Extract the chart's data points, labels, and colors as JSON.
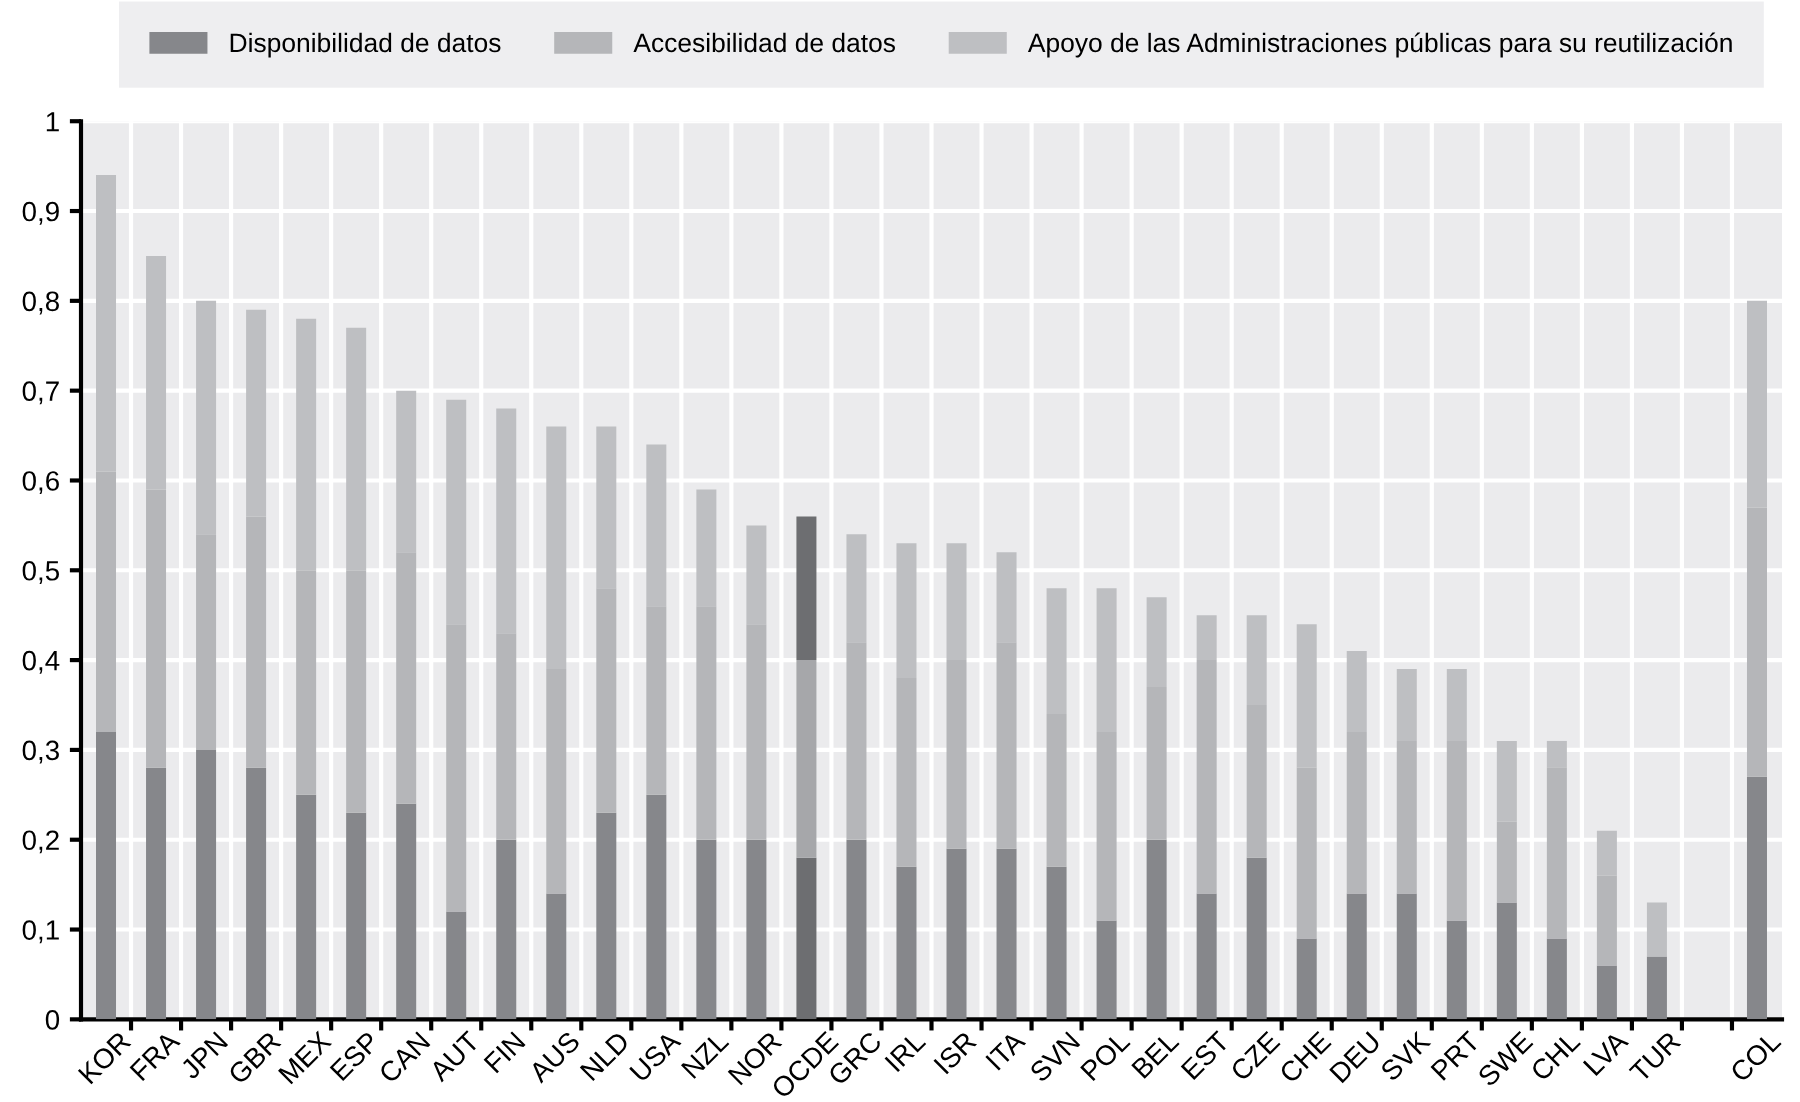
{
  "chart_data": {
    "type": "bar",
    "stacked": true,
    "categories": [
      "KOR",
      "FRA",
      "JPN",
      "GBR",
      "MEX",
      "ESP",
      "CAN",
      "AUT",
      "FIN",
      "AUS",
      "NLD",
      "USA",
      "NZL",
      "NOR",
      "OCDE",
      "GRC",
      "IRL",
      "ISR",
      "ITA",
      "SVN",
      "POL",
      "BEL",
      "EST",
      "CZE",
      "CHE",
      "DEU",
      "SVK",
      "PRT",
      "SWE",
      "CHL",
      "LVA",
      "TUR",
      null,
      "COL"
    ],
    "series": [
      {
        "name": "Disponibilidad de datos",
        "color": "#86878b",
        "colors": [
          "#86878b",
          "#86878b",
          "#86878b",
          "#86878b",
          "#86878b",
          "#86878b",
          "#86878b",
          "#86878b",
          "#86878b",
          "#86878b",
          "#86878b",
          "#86878b",
          "#86878b",
          "#86878b",
          "#6d6e71",
          "#86878b",
          "#86878b",
          "#86878b",
          "#86878b",
          "#86878b",
          "#86878b",
          "#86878b",
          "#86878b",
          "#86878b",
          "#86878b",
          "#86878b",
          "#86878b",
          "#86878b",
          "#86878b",
          "#86878b",
          "#86878b",
          "#86878b",
          "#86878b",
          "#86878b"
        ],
        "values": [
          0.32,
          0.28,
          0.3,
          0.28,
          0.25,
          0.23,
          0.24,
          0.12,
          0.2,
          0.14,
          0.23,
          0.25,
          0.2,
          0.2,
          0.18,
          0.2,
          0.17,
          0.19,
          0.19,
          0.17,
          0.11,
          0.2,
          0.14,
          0.18,
          0.09,
          0.14,
          0.14,
          0.11,
          0.13,
          0.09,
          0.06,
          0.07,
          null,
          0.27
        ]
      },
      {
        "name": "Accesibilidad de datos",
        "color": "#b5b6b9",
        "colors": [
          "#b5b6b9",
          "#b5b6b9",
          "#b5b6b9",
          "#b5b6b9",
          "#b5b6b9",
          "#b5b6b9",
          "#b5b6b9",
          "#b5b6b9",
          "#b5b6b9",
          "#b5b6b9",
          "#b5b6b9",
          "#b5b6b9",
          "#b5b6b9",
          "#b5b6b9",
          "#a6a7aa",
          "#b5b6b9",
          "#b5b6b9",
          "#b5b6b9",
          "#b5b6b9",
          "#b5b6b9",
          "#b5b6b9",
          "#b5b6b9",
          "#b5b6b9",
          "#b5b6b9",
          "#b5b6b9",
          "#b5b6b9",
          "#b5b6b9",
          "#b5b6b9",
          "#b5b6b9",
          "#b5b6b9",
          "#b5b6b9",
          "#b5b6b9",
          "#b5b6b9",
          "#b5b6b9"
        ],
        "values": [
          0.29,
          0.31,
          0.24,
          0.28,
          0.25,
          0.27,
          0.28,
          0.32,
          0.23,
          0.25,
          0.25,
          0.21,
          0.26,
          0.24,
          0.22,
          0.22,
          0.21,
          0.21,
          0.23,
          0.17,
          0.21,
          0.17,
          0.26,
          0.17,
          0.19,
          0.18,
          0.17,
          0.2,
          0.09,
          0.19,
          0.1,
          0,
          null,
          0.3
        ]
      },
      {
        "name": "Apoyo de las Administraciones públicas para su reutilización",
        "color": "#bebfc2",
        "colors": [
          "#bebfc2",
          "#bebfc2",
          "#bebfc2",
          "#bebfc2",
          "#bebfc2",
          "#bebfc2",
          "#bebfc2",
          "#bebfc2",
          "#bebfc2",
          "#bebfc2",
          "#bebfc2",
          "#bebfc2",
          "#bebfc2",
          "#bebfc2",
          "#6d6e71",
          "#bebfc2",
          "#bebfc2",
          "#bebfc2",
          "#bebfc2",
          "#bebfc2",
          "#bebfc2",
          "#bebfc2",
          "#bebfc2",
          "#bebfc2",
          "#bebfc2",
          "#bebfc2",
          "#bebfc2",
          "#bebfc2",
          "#bebfc2",
          "#bebfc2",
          "#bebfc2",
          "#bebfc2",
          "#bebfc2",
          "#bebfc2"
        ],
        "values": [
          0.33,
          0.26,
          0.26,
          0.23,
          0.28,
          0.27,
          0.18,
          0.25,
          0.25,
          0.27,
          0.18,
          0.18,
          0.13,
          0.11,
          0.16,
          0.12,
          0.15,
          0.13,
          0.1,
          0.14,
          0.16,
          0.1,
          0.05,
          0.1,
          0.16,
          0.09,
          0.08,
          0.08,
          0.09,
          0.03,
          0.05,
          0.06,
          null,
          0.23
        ]
      }
    ],
    "ylim": [
      0,
      1
    ],
    "yticks": [
      0,
      {
        "value": 0.1,
        "label": "0,1"
      },
      {
        "value": 0.2,
        "label": "0,2"
      },
      {
        "value": 0.3,
        "label": "0,3"
      },
      {
        "value": 0.4,
        "label": "0,4"
      },
      {
        "value": 0.5,
        "label": "0,5"
      },
      {
        "value": 0.6,
        "label": "0,6"
      },
      {
        "value": 0.7,
        "label": "0,7"
      },
      {
        "value": 0.8,
        "label": "0,8"
      },
      {
        "value": 0.9,
        "label": "0,9"
      },
      1
    ],
    "grid": true,
    "legend": "top"
  }
}
